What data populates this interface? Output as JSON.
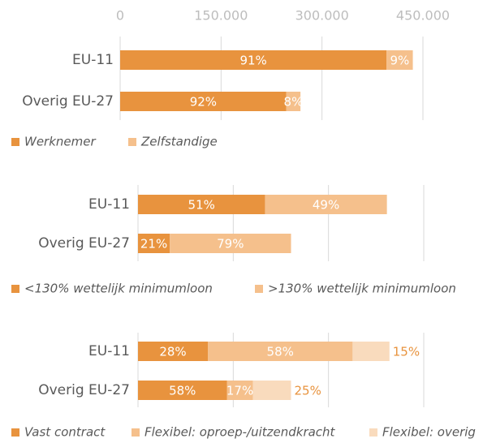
{
  "chart_data": [
    {
      "type": "bar",
      "orientation": "horizontal",
      "stacked": true,
      "categories": [
        "EU-11",
        "Overig EU-27"
      ],
      "series": [
        {
          "name": "Werknemer",
          "color": "#e8933e",
          "values": [
            396000,
            247000
          ],
          "value_labels": [
            "91%",
            "92%"
          ]
        },
        {
          "name": "Zelfstandige",
          "color": "#f5c08c",
          "values": [
            39000,
            21000
          ],
          "value_labels": [
            "9%",
            "8%"
          ]
        }
      ],
      "xlim": [
        0,
        450000
      ],
      "xticks": [
        0,
        {
          "value": 150000,
          "label": "150.000"
        },
        {
          "value": 300000,
          "label": "300.000"
        },
        {
          "value": 450000,
          "label": "450.000"
        }
      ],
      "grid": true,
      "legend": "bottom"
    },
    {
      "type": "bar",
      "orientation": "horizontal",
      "stacked": true,
      "categories": [
        "EU-11",
        "Overig EU-27"
      ],
      "series": [
        {
          "name": "<130% wettelijk minimumloon",
          "color": "#e8933e",
          "values": [
            200000,
            50000
          ],
          "value_labels": [
            "51%",
            "21%"
          ]
        },
        {
          "name": ">130% wettelijk minimumloon",
          "color": "#f5c08c",
          "values": [
            192000,
            191000
          ],
          "value_labels": [
            "49%",
            "79%"
          ]
        }
      ],
      "xlim": [
        0,
        450000
      ],
      "xticks": [
        0,
        150000,
        300000,
        450000
      ],
      "show_tick_labels": false,
      "grid": true,
      "legend": "bottom"
    },
    {
      "type": "bar",
      "orientation": "horizontal",
      "stacked": true,
      "categories": [
        "EU-11",
        "Overig EU-27"
      ],
      "series": [
        {
          "name": "Vast contract",
          "color": "#e8933e",
          "values": [
            110000,
            140000
          ],
          "value_labels": [
            "28%",
            "58%"
          ]
        },
        {
          "name": "Flexibel: oproep-/uitzendkracht",
          "color": "#f5c08c",
          "values": [
            228000,
            41000
          ],
          "value_labels": [
            "58%",
            "17%"
          ]
        },
        {
          "name": "Flexibel: overig",
          "color": "#f9dbbd",
          "values": [
            58000,
            60000
          ],
          "value_labels": [
            "15%",
            "25%"
          ],
          "label_outside": true
        }
      ],
      "xlim": [
        0,
        450000
      ],
      "xticks": [
        0,
        150000,
        300000,
        450000
      ],
      "show_tick_labels": false,
      "grid": true,
      "legend": "bottom"
    }
  ]
}
